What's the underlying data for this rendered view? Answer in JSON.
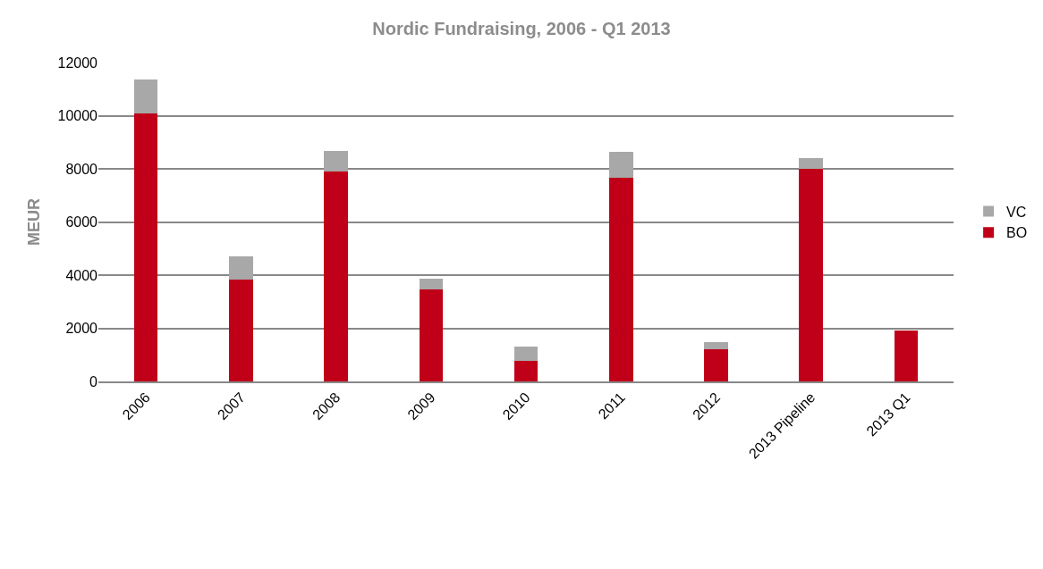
{
  "chart_data": {
    "type": "bar",
    "title": "Nordic Fundraising, 2006 - Q1 2013",
    "ylabel": "MEUR",
    "categories": [
      "2006",
      "2007",
      "2008",
      "2009",
      "2010",
      "2011",
      "2012",
      "2013 Pipeline",
      "2013 Q1"
    ],
    "stacked": true,
    "series": [
      {
        "name": "BO",
        "color": "#c00018",
        "values": [
          10100,
          3820,
          7910,
          3450,
          790,
          7680,
          1200,
          8010,
          1930
        ]
      },
      {
        "name": "VC",
        "color": "#a8a8a8",
        "values": [
          1260,
          890,
          760,
          400,
          520,
          960,
          290,
          400,
          0
        ]
      }
    ],
    "ylim": [
      0,
      12000
    ],
    "yticks": [
      0,
      2000,
      4000,
      6000,
      8000,
      10000,
      12000
    ],
    "grid": "y",
    "legend": "right"
  }
}
